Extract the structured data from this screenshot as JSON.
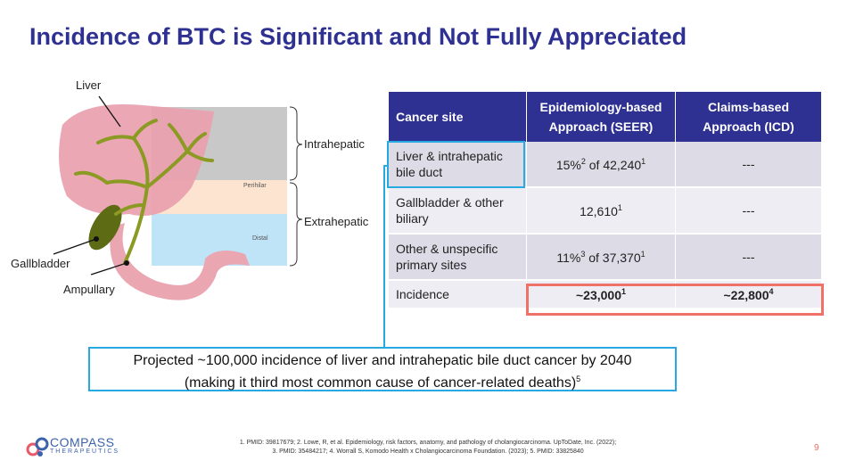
{
  "title": "Incidence of BTC is Significant and Not Fully Appreciated",
  "illustration": {
    "liver_label": "Liver",
    "gallbladder_label": "Gallbladder",
    "ampullary_label": "Ampullary",
    "intrahepatic_label": "Intrahepatic",
    "extrahepatic_label": "Extrahepatic",
    "perihilar_label": "Perihilar",
    "distal_label": "Distal"
  },
  "table": {
    "headers": [
      "Cancer site",
      "Epidemiology-based Approach (SEER)",
      "Claims-based Approach (ICD)"
    ],
    "rows": [
      {
        "site": "Liver & intrahepatic bile duct",
        "seer": "15%2 of 42,2401",
        "icd": "---"
      },
      {
        "site": "Gallbladder & other biliary",
        "seer": "12,6101",
        "icd": "---"
      },
      {
        "site": "Other & unspecific primary sites",
        "seer": "11%3 of 37,3701",
        "icd": "---"
      },
      {
        "site": "Incidence",
        "seer": "~23,0001",
        "icd": "~22,8004"
      }
    ]
  },
  "callout": {
    "line1": "Projected ~100,000 incidence of liver and intrahepatic bile duct cancer by 2040",
    "line2": "(making it third most common cause of cancer-related deaths)5"
  },
  "footnote": {
    "line1": "1. PMID: 39817679; 2. Lowe, R, et al. Epidemiology, risk factors, anatomy, and pathology of cholangiocarcinoma. UpToDate, Inc. (2022);",
    "line2": "3. PMID: 35484217; 4. Worrall S, Komodo Health x Cholangiocarcinoma Foundation. (2023); 5. PMID: 33825840"
  },
  "page_number": "9",
  "logo": {
    "name": "COMPASS",
    "subtitle": "THERAPEUTICS"
  },
  "colors": {
    "title": "#2e3192",
    "header_bg": "#2e3192",
    "highlight_blue": "#29a9e1",
    "highlight_red": "#ef7167"
  }
}
